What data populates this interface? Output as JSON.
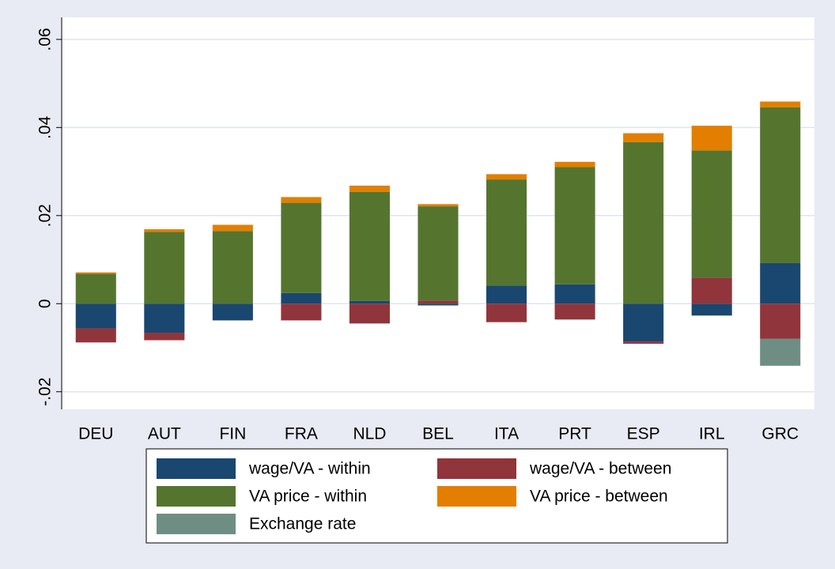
{
  "chart_data": {
    "type": "stacked_bar",
    "categories": [
      "DEU",
      "AUT",
      "FIN",
      "FRA",
      "NLD",
      "BEL",
      "ITA",
      "PRT",
      "ESP",
      "IRL",
      "GRC"
    ],
    "series": [
      {
        "name": "wage/VA - within",
        "color": "#1a476f",
        "values": [
          -0.0056,
          -0.0066,
          -0.0038,
          0.0024,
          0.0006,
          -0.0004,
          0.0041,
          0.0044,
          -0.0086,
          -0.0027,
          0.0092
        ]
      },
      {
        "name": "wage/VA - between",
        "color": "#90353b",
        "values": [
          -0.0032,
          -0.0017,
          0,
          -0.0038,
          -0.0045,
          0.0007,
          -0.0042,
          -0.0036,
          -0.0005,
          0.0059,
          -0.008
        ]
      },
      {
        "name": "VA price - within",
        "color": "#55752f",
        "values": [
          0.0068,
          0.0163,
          0.0165,
          0.0205,
          0.0248,
          0.0214,
          0.0241,
          0.0266,
          0.0367,
          0.0289,
          0.0354
        ]
      },
      {
        "name": "VA price - between",
        "color": "#e37e00",
        "values": [
          0.0003,
          0.0006,
          0.0014,
          0.0013,
          0.0014,
          0.0005,
          0.0012,
          0.0012,
          0.002,
          0.0056,
          0.0013
        ]
      },
      {
        "name": "Exchange rate",
        "color": "#6e8e84",
        "values": [
          0,
          0,
          0,
          0,
          0,
          0,
          0,
          0,
          0,
          0,
          -0.0061
        ]
      }
    ],
    "ylim": [
      -0.024,
      0.065
    ],
    "yticks": [
      {
        "value": -0.02,
        "label": "-.02"
      },
      0,
      {
        "value": 0.02,
        "label": ".02"
      },
      {
        "value": 0.04,
        "label": ".04"
      },
      {
        "value": 0.06,
        "label": ".06"
      }
    ],
    "grid": true
  }
}
